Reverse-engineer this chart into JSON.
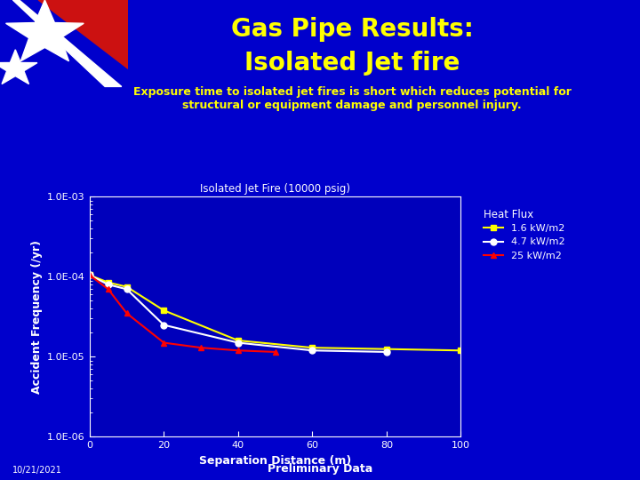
{
  "title_line1": "Gas Pipe Results:",
  "title_line2": "Isolated Jet fire",
  "subtitle": "Exposure time to isolated jet fires is short which reduces potential for\nstructural or equipment damage and personnel injury.",
  "chart_title": "Isolated Jet Fire (10000 psig)",
  "xlabel": "Separation Distance (m)",
  "ylabel": "Accident Frequency (/yr)",
  "legend_title": "Heat Flux",
  "background_color": "#0000CC",
  "plot_bg_color": "#0000BB",
  "title_color": "#FFFF00",
  "subtitle_color": "#FFFF00",
  "text_color": "#FFFFFF",
  "axis_label_color": "#FFFFFF",
  "tick_color": "#FFFFFF",
  "footer_date": "10/21/2021",
  "footer_text": "Preliminary Data",
  "series": [
    {
      "label": "1.6 kW/m2",
      "color": "#FFFF00",
      "marker": "s",
      "marker_color": "#FFFF00",
      "x": [
        0,
        5,
        10,
        20,
        40,
        60,
        80,
        100
      ],
      "y": [
        0.000105,
        8.5e-05,
        7.5e-05,
        3.8e-05,
        1.6e-05,
        1.3e-05,
        1.25e-05,
        1.2e-05
      ]
    },
    {
      "label": "4.7 kW/m2",
      "color": "#FFFFFF",
      "marker": "o",
      "marker_color": "#FFFFFF",
      "x": [
        0,
        5,
        10,
        20,
        40,
        60,
        80
      ],
      "y": [
        0.000105,
        8e-05,
        7e-05,
        2.5e-05,
        1.5e-05,
        1.2e-05,
        1.15e-05
      ]
    },
    {
      "label": "25 kW/m2",
      "color": "#FF0000",
      "marker": "^",
      "marker_color": "#FF0000",
      "x": [
        0,
        5,
        10,
        20,
        30,
        40,
        50
      ],
      "y": [
        0.000105,
        7e-05,
        3.5e-05,
        1.5e-05,
        1.3e-05,
        1.2e-05,
        1.15e-05
      ]
    }
  ],
  "ylim": [
    1e-06,
    0.001
  ],
  "xlim": [
    0,
    100
  ],
  "yticks": [
    1e-06,
    1e-05,
    0.0001,
    0.001
  ],
  "ytick_labels": [
    "1.0E-06",
    "1.0E-05",
    "1.0E-04",
    "1.0E-03"
  ],
  "xticks": [
    0,
    20,
    40,
    60,
    80,
    100
  ]
}
